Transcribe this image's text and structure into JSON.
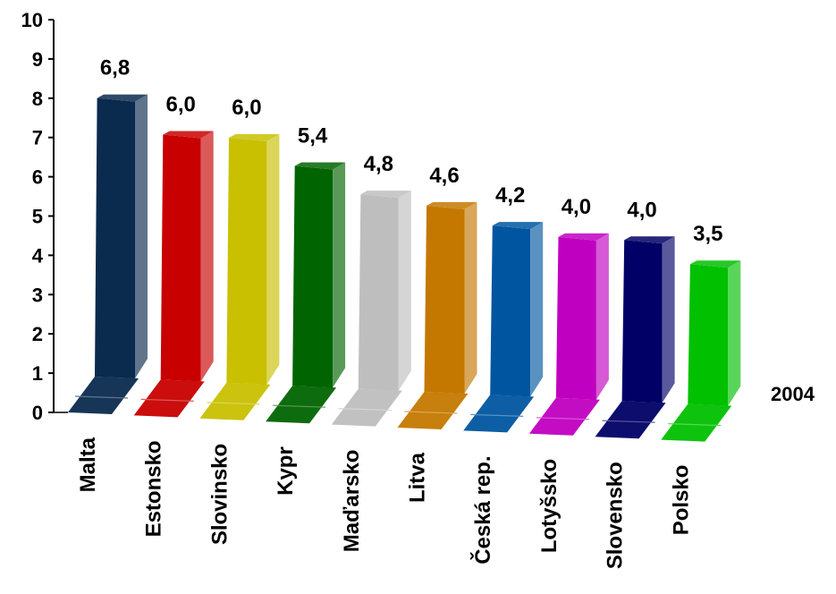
{
  "chart_data": {
    "type": "bar",
    "categories": [
      "Malta",
      "Estonsko",
      "Slovinsko",
      "Kypr",
      "Maďarsko",
      "Litva",
      "Česká rep.",
      "Lotyšsko",
      "Slovensko",
      "Polsko"
    ],
    "series": [
      {
        "name": "2004",
        "values": [
          6.8,
          6.0,
          6.0,
          5.4,
          4.8,
          4.6,
          4.2,
          4.0,
          4.0,
          3.5
        ]
      }
    ],
    "data_labels": [
      "6,8",
      "6,0",
      "6,0",
      "5,4",
      "4,8",
      "4,6",
      "4,2",
      "4,0",
      "4,0",
      "3,5"
    ],
    "y_ticks": [
      "0",
      "1",
      "2",
      "3",
      "4",
      "5",
      "6",
      "7",
      "8",
      "9",
      "10"
    ],
    "ylim": [
      0,
      10
    ],
    "bar_colors": [
      "#0a2a4e",
      "#c80000",
      "#c8c000",
      "#006400",
      "#bebebe",
      "#c47800",
      "#0055a0",
      "#c000c0",
      "#000066",
      "#00c000"
    ],
    "title": "",
    "xlabel": "",
    "ylabel": "",
    "grid": false,
    "legend": "none",
    "style": "3d"
  }
}
